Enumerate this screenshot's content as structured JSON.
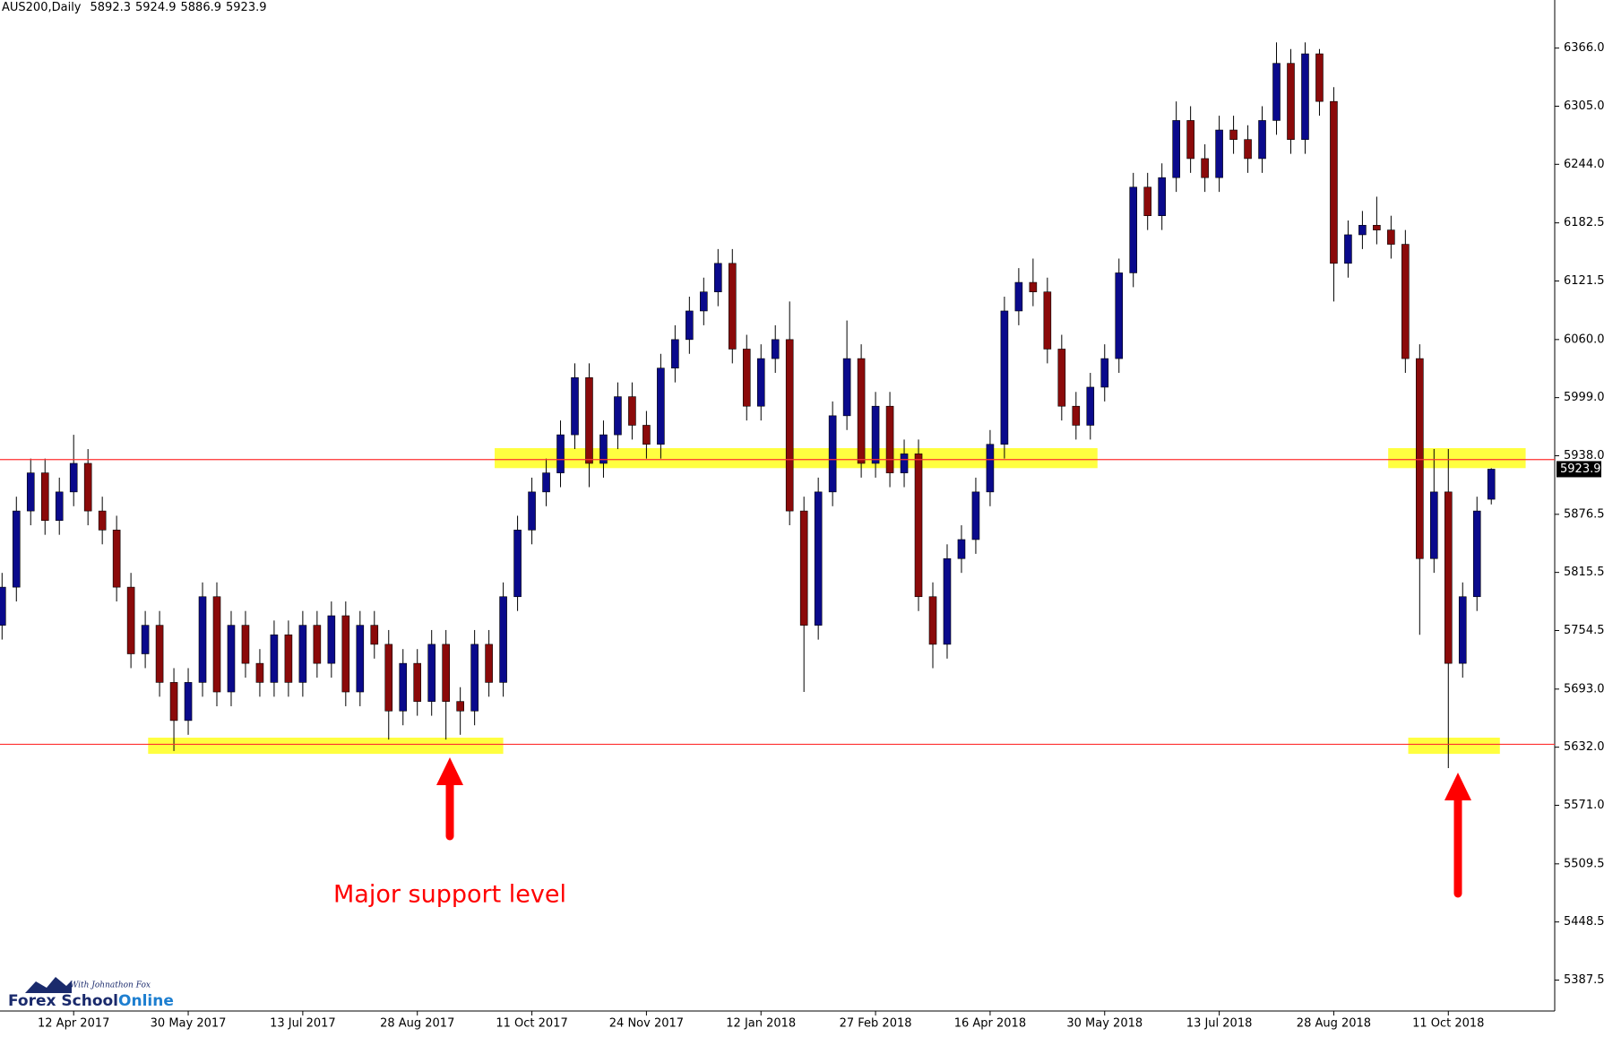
{
  "chart_data": {
    "type": "candlestick",
    "symbol": "AUS200,Daily",
    "categories": [
      null,
      null,
      null,
      null,
      null,
      "12 Apr 2017",
      null,
      null,
      null,
      null,
      null,
      null,
      null,
      "30 May 2017",
      null,
      null,
      null,
      null,
      null,
      null,
      null,
      "13 Jul 2017",
      null,
      null,
      null,
      null,
      null,
      null,
      null,
      "28 Aug 2017",
      null,
      null,
      null,
      null,
      null,
      null,
      null,
      "11 Oct 2017",
      null,
      null,
      null,
      null,
      null,
      null,
      null,
      "24 Nov 2017",
      null,
      null,
      null,
      null,
      null,
      null,
      null,
      "12 Jan 2018",
      null,
      null,
      null,
      null,
      null,
      null,
      null,
      "27 Feb 2018",
      null,
      null,
      null,
      null,
      null,
      null,
      null,
      "16 Apr 2018",
      null,
      null,
      null,
      null,
      null,
      null,
      null,
      "30 May 2018",
      null,
      null,
      null,
      null,
      null,
      null,
      null,
      "13 Jul 2018",
      null,
      null,
      null,
      null,
      null,
      null,
      null,
      "28 Aug 2018",
      null,
      null,
      null,
      null,
      null,
      null,
      null,
      "11 Oct 2018",
      null,
      null,
      null
    ],
    "open": [
      5760,
      5800,
      5880,
      5920,
      5870,
      5900,
      5930,
      5880,
      5860,
      5800,
      5730,
      5760,
      5700,
      5660,
      5700,
      5790,
      5690,
      5760,
      5720,
      5700,
      5750,
      5700,
      5760,
      5720,
      5770,
      5690,
      5760,
      5740,
      5670,
      5720,
      5680,
      5740,
      5680,
      5670,
      5740,
      5700,
      5790,
      5860,
      5900,
      5920,
      5960,
      6020,
      5930,
      5960,
      6000,
      5970,
      5950,
      6030,
      6060,
      6090,
      6110,
      6140,
      6050,
      5990,
      6040,
      6060,
      5880,
      5760,
      5900,
      5980,
      6040,
      5930,
      5990,
      5920,
      5940,
      5790,
      5740,
      5830,
      5850,
      5900,
      5950,
      6090,
      6120,
      6110,
      6050,
      5990,
      5970,
      6010,
      6040,
      6130,
      6220,
      6190,
      6230,
      6290,
      6250,
      6230,
      6280,
      6270,
      6250,
      6290,
      6350,
      6270,
      6360,
      6310,
      6140,
      6170,
      6180,
      6175,
      6160,
      6040,
      5830,
      5900,
      5720,
      5790,
      5892.3
    ],
    "high": [
      5815,
      5895,
      5935,
      5935,
      5915,
      5960,
      5945,
      5895,
      5875,
      5815,
      5775,
      5775,
      5715,
      5715,
      5805,
      5805,
      5775,
      5775,
      5735,
      5765,
      5765,
      5775,
      5775,
      5785,
      5785,
      5775,
      5775,
      5755,
      5735,
      5735,
      5755,
      5755,
      5695,
      5755,
      5755,
      5805,
      5875,
      5915,
      5935,
      5975,
      6035,
      6035,
      5975,
      6015,
      6015,
      5985,
      6045,
      6075,
      6105,
      6125,
      6155,
      6155,
      6065,
      6055,
      6075,
      6100,
      5895,
      5915,
      5995,
      6080,
      6055,
      6005,
      6005,
      5955,
      5955,
      5805,
      5845,
      5865,
      5915,
      5965,
      6105,
      6135,
      6145,
      6125,
      6065,
      6005,
      6025,
      6055,
      6145,
      6235,
      6235,
      6245,
      6310,
      6305,
      6265,
      6295,
      6295,
      6285,
      6305,
      6372,
      6365,
      6372,
      6365,
      6325,
      6185,
      6195,
      6210,
      6190,
      6175,
      6055,
      5945,
      5945,
      5805,
      5895,
      5924.9
    ],
    "low": [
      5745,
      5785,
      5865,
      5855,
      5855,
      5885,
      5865,
      5845,
      5785,
      5715,
      5715,
      5685,
      5628,
      5645,
      5685,
      5675,
      5675,
      5705,
      5685,
      5685,
      5685,
      5685,
      5705,
      5705,
      5675,
      5675,
      5725,
      5640,
      5655,
      5665,
      5665,
      5640,
      5645,
      5655,
      5685,
      5685,
      5775,
      5845,
      5885,
      5905,
      5945,
      5905,
      5915,
      5945,
      5955,
      5935,
      5935,
      6015,
      6045,
      6075,
      6095,
      6035,
      5975,
      5975,
      6025,
      5865,
      5690,
      5745,
      5885,
      5965,
      5915,
      5915,
      5905,
      5905,
      5775,
      5715,
      5725,
      5815,
      5835,
      5885,
      5935,
      6075,
      6095,
      6035,
      5975,
      5955,
      5955,
      5995,
      6025,
      6115,
      6175,
      6175,
      6215,
      6235,
      6215,
      6215,
      6255,
      6235,
      6235,
      6275,
      6255,
      6255,
      6295,
      6100,
      6125,
      6155,
      6160,
      6145,
      6025,
      5750,
      5815,
      5610,
      5705,
      5775,
      5886.9
    ],
    "close": [
      5800,
      5880,
      5920,
      5870,
      5900,
      5930,
      5880,
      5860,
      5800,
      5730,
      5760,
      5700,
      5660,
      5700,
      5790,
      5690,
      5760,
      5720,
      5700,
      5750,
      5700,
      5760,
      5720,
      5770,
      5690,
      5760,
      5740,
      5670,
      5720,
      5680,
      5740,
      5680,
      5670,
      5740,
      5700,
      5790,
      5860,
      5900,
      5920,
      5960,
      6020,
      5930,
      5960,
      6000,
      5970,
      5950,
      6030,
      6060,
      6090,
      6110,
      6140,
      6050,
      5990,
      6040,
      6060,
      5880,
      5760,
      5900,
      5980,
      6040,
      5930,
      5990,
      5920,
      5940,
      5790,
      5740,
      5830,
      5850,
      5900,
      5950,
      6090,
      6120,
      6110,
      6050,
      5990,
      5970,
      6010,
      6040,
      6130,
      6220,
      6190,
      6230,
      6290,
      6250,
      6230,
      6280,
      6270,
      6250,
      6290,
      6350,
      6270,
      6360,
      6310,
      6140,
      6170,
      6180,
      6175,
      6160,
      6040,
      5830,
      5900,
      5720,
      5790,
      5880,
      5923.9
    ],
    "up_color": "#0a0a8c",
    "down_color": "#8b0a0a",
    "ylim": [
      5355,
      6416.5
    ],
    "yticks": [
      {
        "value": 6366,
        "label": "6366.0"
      },
      {
        "value": 6305,
        "label": "6305.0"
      },
      {
        "value": 6244,
        "label": "6244.0"
      },
      6182.5,
      6121.5,
      {
        "value": 6060,
        "label": "6060.0"
      },
      {
        "value": 5999,
        "label": "5999.0"
      },
      {
        "value": 5938,
        "label": "5938.0"
      },
      5876.5,
      5815.5,
      5754.5,
      {
        "value": 5693,
        "label": "5693.0"
      },
      {
        "value": 5632,
        "label": "5632.0"
      },
      {
        "value": 5571,
        "label": "5571.0"
      },
      5509.5,
      5448.5,
      5387.5
    ],
    "levels": [
      5934,
      5635
    ],
    "level_color": "#ff3030",
    "zones": [
      {
        "x": [
          10.2,
          35
        ],
        "y": [
          5625,
          5642
        ]
      },
      {
        "x": [
          34.4,
          76.5
        ],
        "y": [
          5925,
          5946
        ]
      },
      {
        "x": [
          96.8,
          106.4
        ],
        "y": [
          5925,
          5946
        ]
      },
      {
        "x": [
          98.2,
          104.6
        ],
        "y": [
          5625,
          5642
        ]
      }
    ],
    "zone_color": "#ffff40",
    "annotation": "Major support level",
    "logo": {
      "tagline": "With Johnathon Fox",
      "name": "Forex School",
      "name_accent": "Online"
    }
  }
}
